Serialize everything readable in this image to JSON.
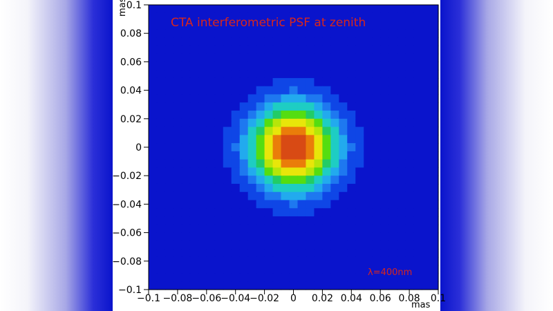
{
  "chart_data": {
    "type": "heatmap",
    "title": "CTA interferometric PSF at zenith",
    "annotation": "λ=400nm",
    "xlabel": "mas",
    "ylabel": "mas",
    "xlim": [
      -0.1,
      0.1
    ],
    "ylim": [
      -0.1,
      0.1
    ],
    "x_ticks": [
      "−0.1",
      "−0.08",
      "−0.06",
      "−0.04",
      "−0.02",
      "0",
      "0.02",
      "0.04",
      "0.06",
      "0.08",
      "0.1"
    ],
    "y_ticks": [
      "−0.1",
      "−0.08",
      "−0.06",
      "−0.04",
      "−0.02",
      "0",
      "0.02",
      "0.04",
      "0.06",
      "0.08",
      "0.1"
    ],
    "grid_cells": 35,
    "psf_fwhm_mas": 0.05,
    "colorscale": [
      "#0a14cc",
      "#0f46e6",
      "#1e78f0",
      "#22aaee",
      "#1ecdc3",
      "#22cc66",
      "#55dd11",
      "#b6e60a",
      "#e8e60a",
      "#f3b40a",
      "#ea7d0a",
      "#d84a14"
    ],
    "colors": {
      "background": "#0a14cc",
      "title": "#d9261c",
      "annotation": "#d9261c"
    }
  }
}
